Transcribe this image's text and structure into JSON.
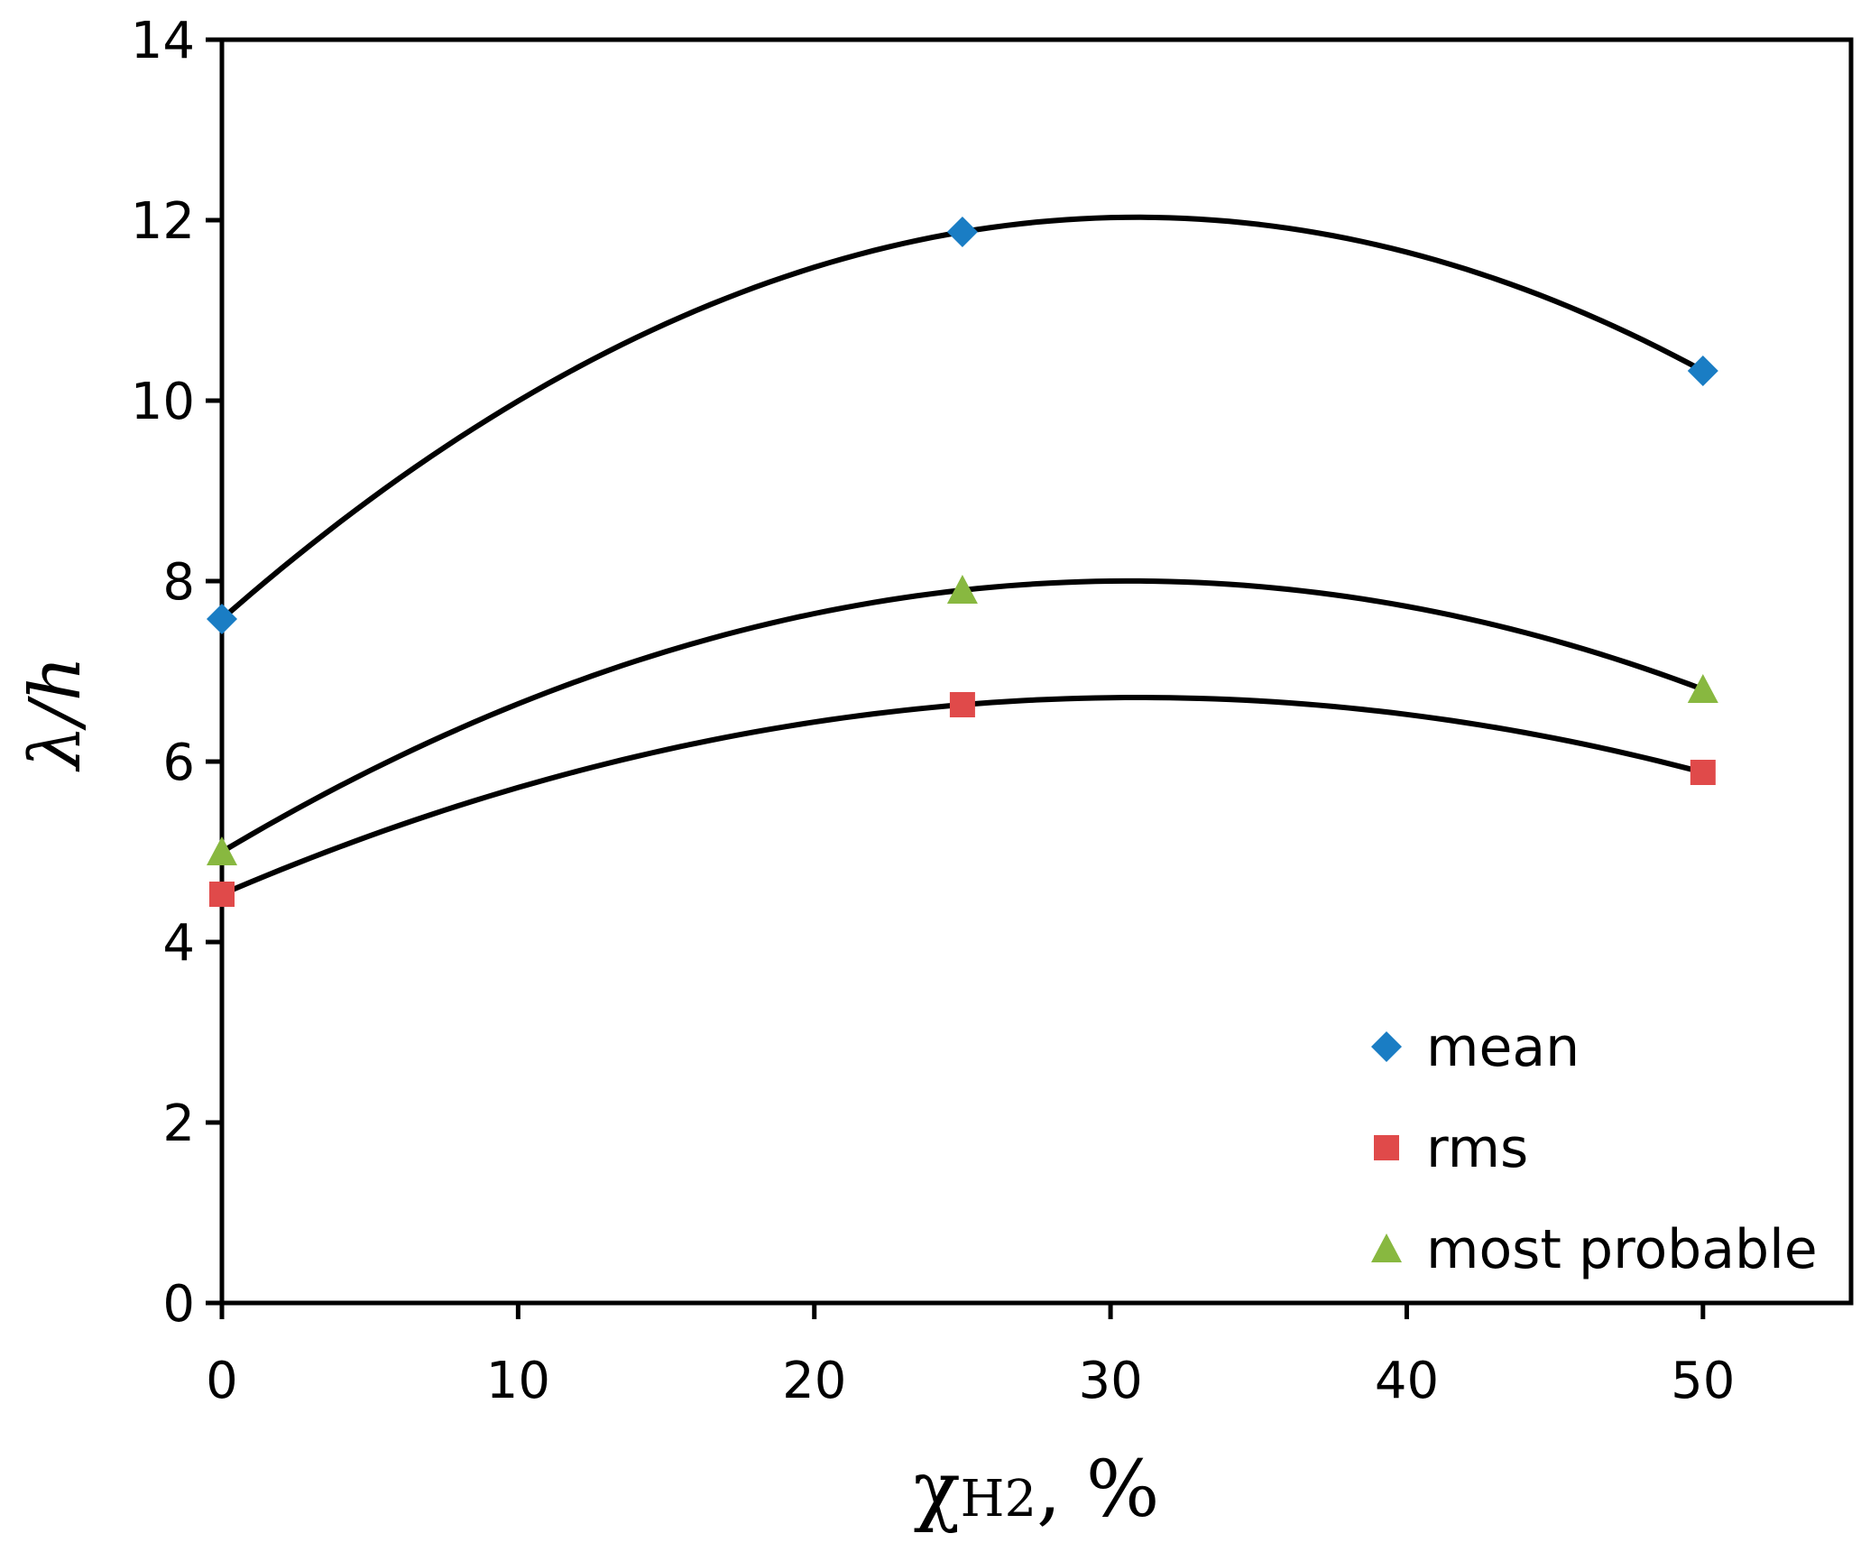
{
  "chart_data": {
    "type": "scatter",
    "title": "",
    "xlabel": "χH2, %",
    "xlabel_parts": {
      "symbol": "χ",
      "subscript": "H2",
      "suffix": ", %"
    },
    "ylabel": "λ/h",
    "xlim": [
      0,
      55
    ],
    "ylim": [
      0,
      14
    ],
    "x_ticks": [
      0,
      10,
      20,
      30,
      40,
      50
    ],
    "y_ticks": [
      0,
      2,
      4,
      6,
      8,
      10,
      12,
      14
    ],
    "x_tick_labels": [
      "0",
      "10",
      "20",
      "30",
      "40",
      "50"
    ],
    "y_tick_labels": [
      "0",
      "2",
      "4",
      "6",
      "8",
      "10",
      "12",
      "14"
    ],
    "grid": false,
    "legend_position": "bottom-right",
    "x": [
      0,
      25,
      50
    ],
    "series": [
      {
        "name": "mean",
        "marker": "diamond",
        "color": "#1a7dc4",
        "values": [
          7.58,
          11.87,
          10.33
        ],
        "trendline": "polynomial-2"
      },
      {
        "name": "rms",
        "marker": "square",
        "color": "#e04a4a",
        "values": [
          4.53,
          6.63,
          5.88
        ],
        "trendline": "polynomial-2"
      },
      {
        "name": "most probable",
        "marker": "triangle",
        "color": "#88b840",
        "values": [
          5.0,
          7.9,
          6.8
        ],
        "trendline": "polynomial-2"
      }
    ]
  }
}
